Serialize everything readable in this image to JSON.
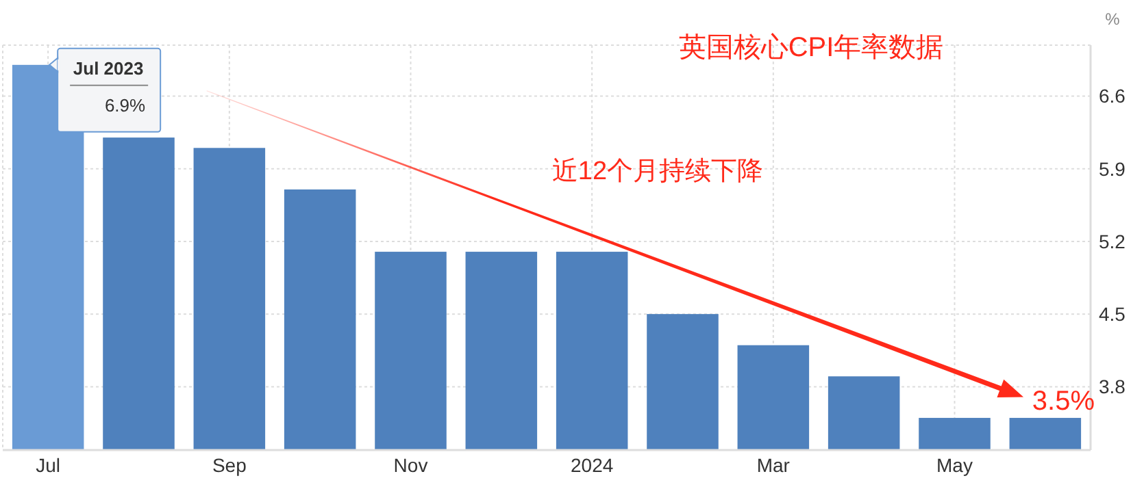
{
  "chart_data": {
    "type": "bar",
    "title": "英国核心CPI年率数据",
    "ylabel": "%",
    "categories": [
      "Jul",
      null,
      "Sep",
      null,
      "Nov",
      null,
      "2024",
      null,
      "Mar",
      null,
      "May",
      null
    ],
    "values": [
      6.9,
      6.2,
      6.1,
      5.7,
      5.1,
      5.1,
      5.1,
      4.5,
      4.2,
      3.9,
      3.5,
      3.5
    ],
    "colors": [
      "#6a9bd5",
      "#4f81bd",
      "#4f81bd",
      "#4f81bd",
      "#4f81bd",
      "#4f81bd",
      "#4f81bd",
      "#4f81bd",
      "#4f81bd",
      "#4f81bd",
      "#4f81bd",
      "#4f81bd"
    ],
    "ylim": [
      3.19,
      7.09
    ],
    "yticks": [
      3.8,
      4.5,
      5.2,
      5.9,
      6.6
    ],
    "grid": true,
    "annotations": [
      {
        "text": "Jul 2023",
        "x": "Jul",
        "y": 6.9
      },
      "6.9%",
      "近12个月持续下降",
      {
        "text": "3.5%",
        "y": 3.5
      }
    ]
  }
}
